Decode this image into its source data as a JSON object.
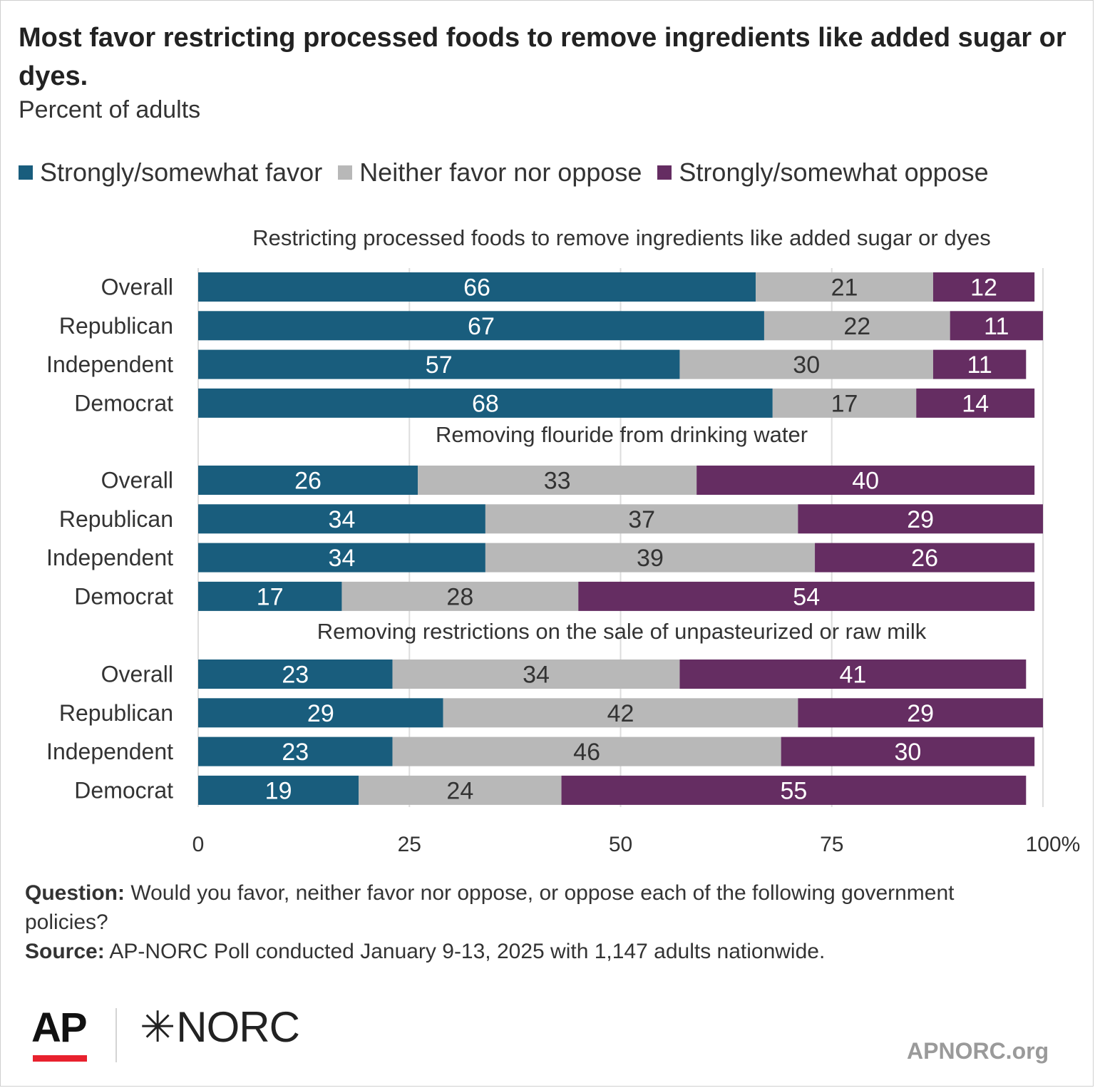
{
  "title": "Most favor restricting processed foods to remove ingredients like added sugar or dyes.",
  "subtitle": "Percent of adults",
  "legend": [
    {
      "label": "Strongly/somewhat favor",
      "color": "#195d7d"
    },
    {
      "label": "Neither favor nor oppose",
      "color": "#b8b8b8"
    },
    {
      "label": "Strongly/somewhat oppose",
      "color": "#652d62"
    }
  ],
  "chart_data": {
    "type": "bar",
    "orientation": "horizontal",
    "stacked": true,
    "xlim": [
      0,
      100
    ],
    "x_ticks": [
      "0",
      "25",
      "50",
      "75",
      "100%"
    ],
    "grid": true,
    "legend_position": "top",
    "series_names": [
      "Strongly/somewhat favor",
      "Neither favor nor oppose",
      "Strongly/somewhat oppose"
    ],
    "panels": [
      {
        "title": "Restricting processed foods to remove ingredients like added sugar or dyes",
        "rows": [
          {
            "label": "Overall",
            "values": [
              66,
              21,
              12
            ]
          },
          {
            "label": "Republican",
            "values": [
              67,
              22,
              11
            ]
          },
          {
            "label": "Independent",
            "values": [
              57,
              30,
              11
            ]
          },
          {
            "label": "Democrat",
            "values": [
              68,
              17,
              14
            ]
          }
        ]
      },
      {
        "title": "Removing flouride from drinking water",
        "rows": [
          {
            "label": "Overall",
            "values": [
              26,
              33,
              40
            ]
          },
          {
            "label": "Republican",
            "values": [
              34,
              37,
              29
            ]
          },
          {
            "label": "Independent",
            "values": [
              34,
              39,
              26
            ]
          },
          {
            "label": "Democrat",
            "values": [
              17,
              28,
              54
            ]
          }
        ]
      },
      {
        "title": "Removing restrictions on the sale of unpasteurized or raw milk",
        "rows": [
          {
            "label": "Overall",
            "values": [
              23,
              34,
              41
            ]
          },
          {
            "label": "Republican",
            "values": [
              29,
              42,
              29
            ]
          },
          {
            "label": "Independent",
            "values": [
              23,
              46,
              30
            ]
          },
          {
            "label": "Democrat",
            "values": [
              19,
              24,
              55
            ]
          }
        ]
      }
    ]
  },
  "notes": {
    "question_label": "Question:",
    "question_text": " Would you favor, neither favor nor oppose, or oppose each of the following government policies?",
    "source_label": "Source:",
    "source_text": " AP-NORC Poll conducted January 9-13, 2025 with 1,147 adults nationwide."
  },
  "footer": {
    "ap_logo": "AP",
    "norc_logo": "NORC",
    "site": "APNORC.org"
  }
}
